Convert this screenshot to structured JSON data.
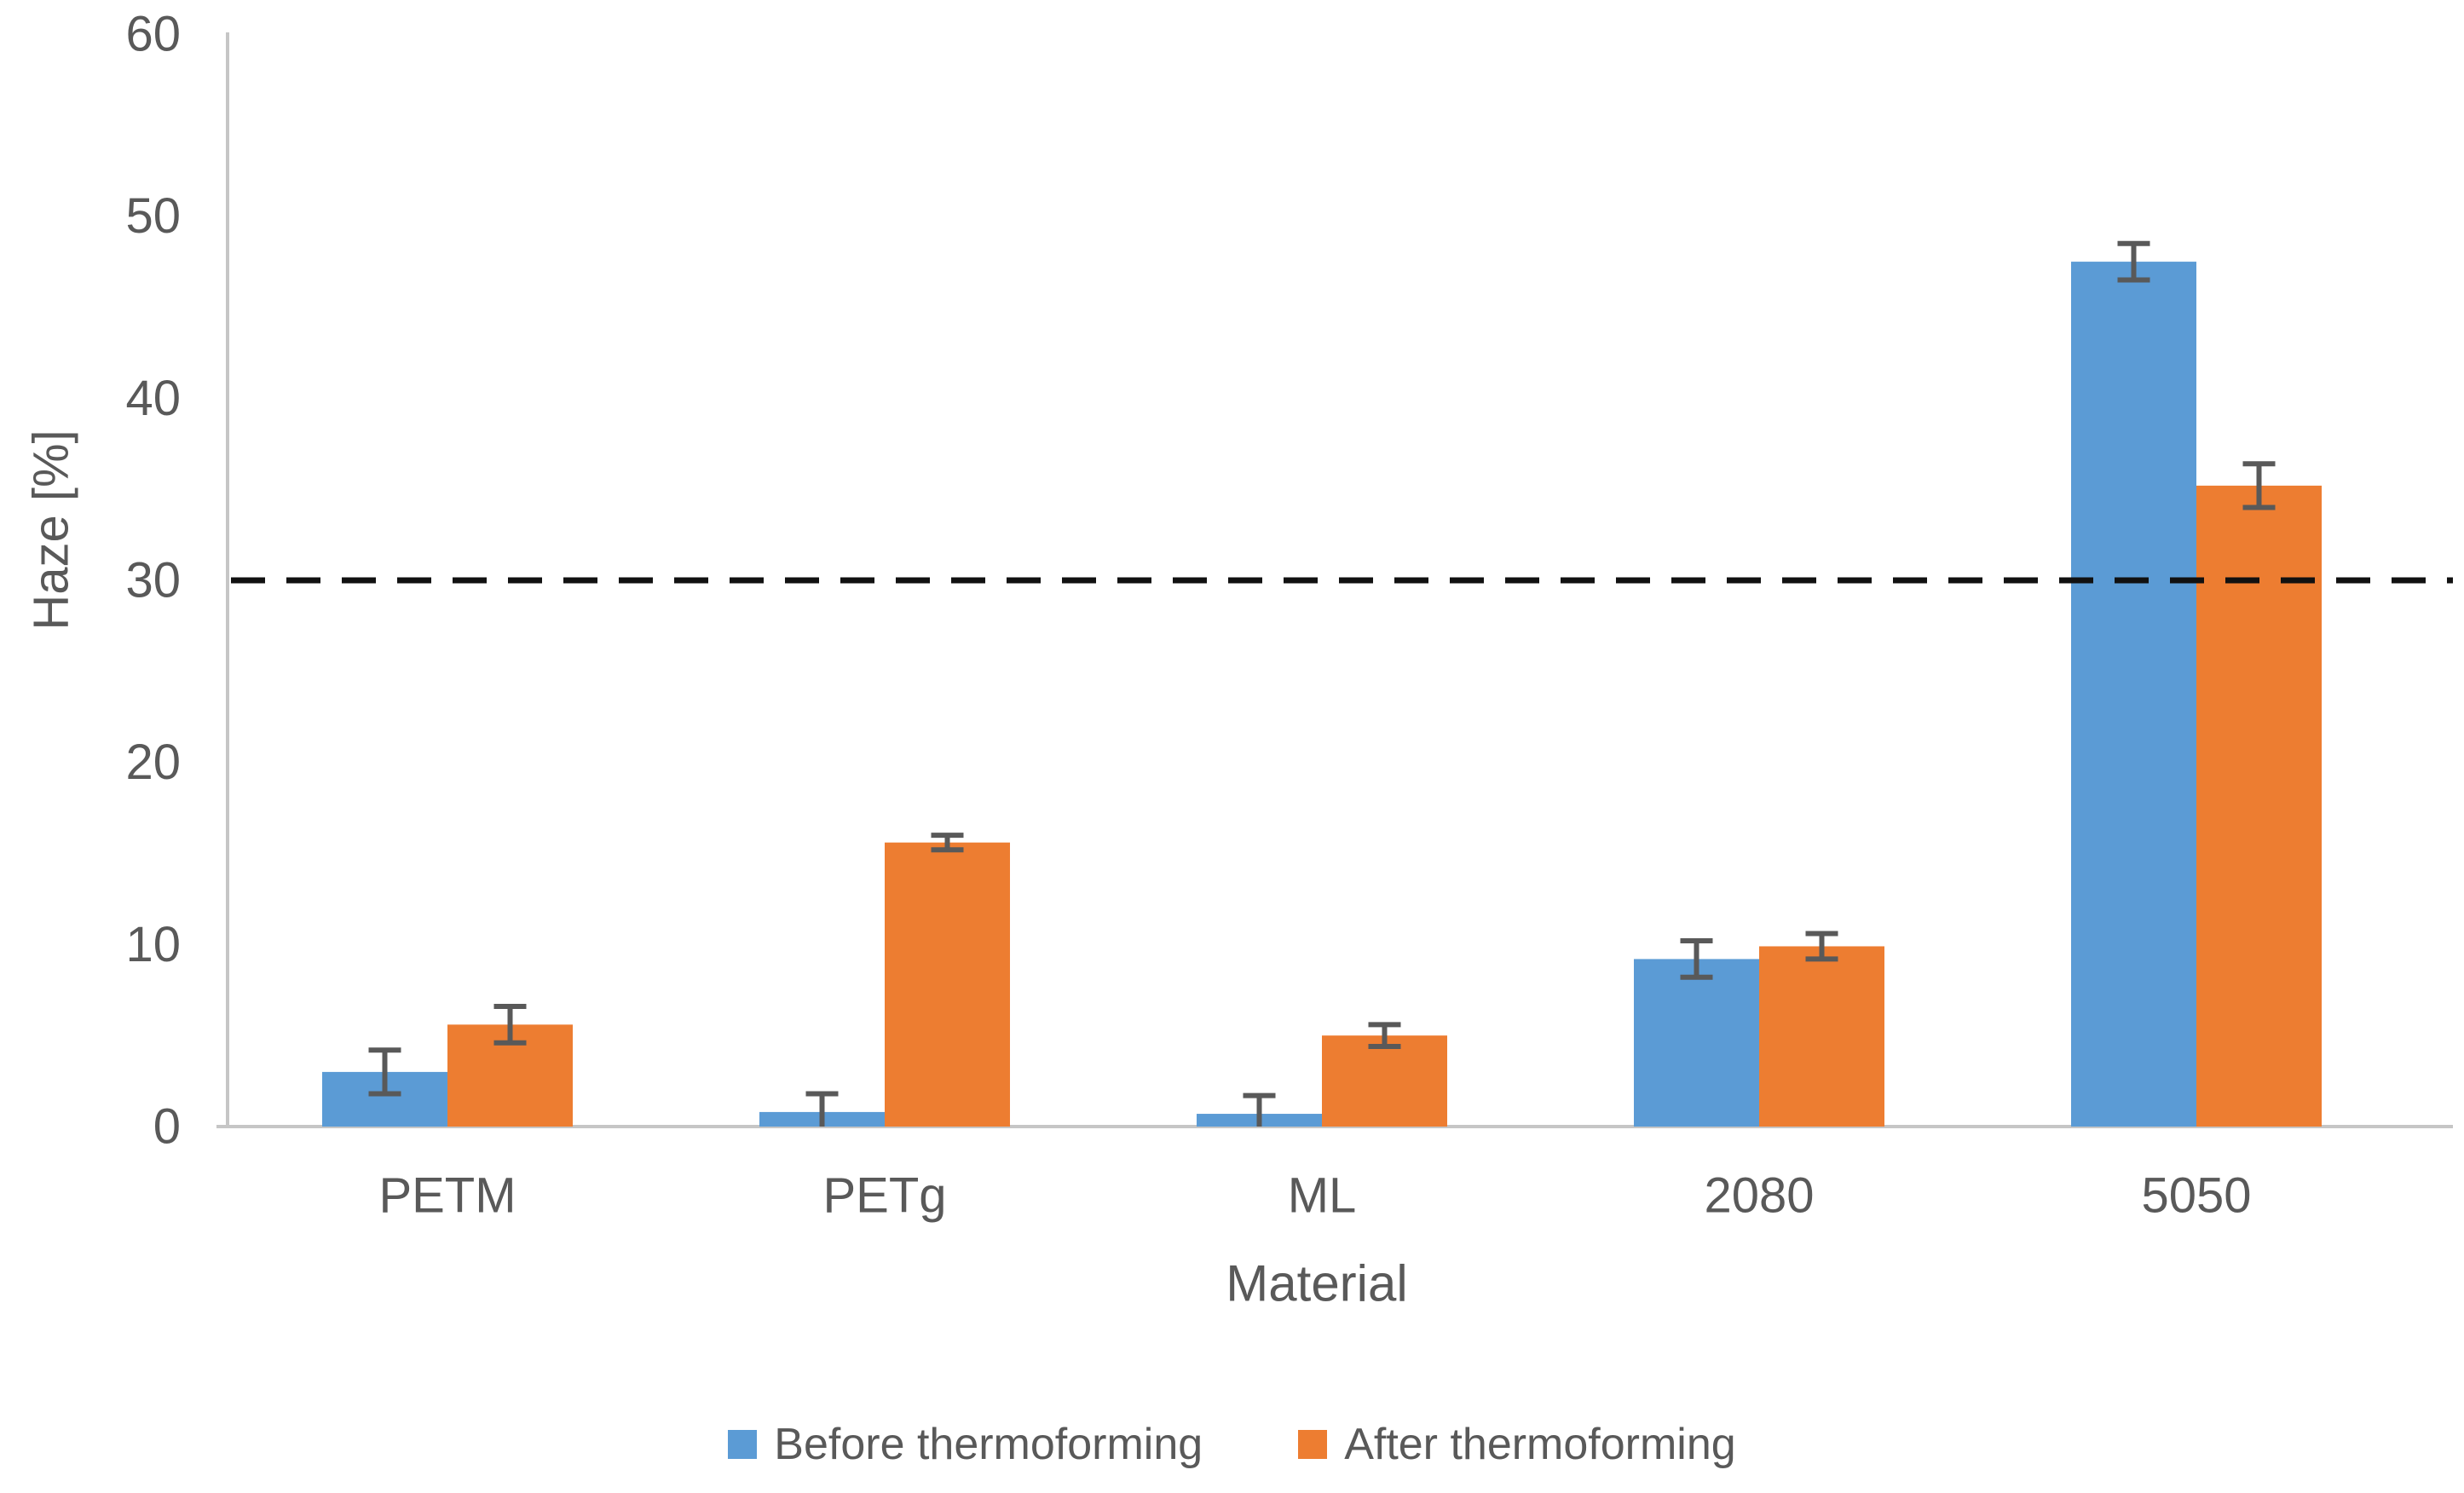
{
  "chart_data": {
    "type": "bar",
    "title": "",
    "xlabel": "Material",
    "ylabel": "Haze [%]",
    "categories": [
      "PETM",
      "PETg",
      "ML",
      "2080",
      "5050"
    ],
    "series": [
      {
        "name": "Before thermoforming",
        "color": "#5B9BD5",
        "values": [
          3.0,
          0.8,
          0.7,
          9.2,
          47.5
        ],
        "errors": [
          1.2,
          1.0,
          1.0,
          1.0,
          1.0
        ]
      },
      {
        "name": "After thermoforming",
        "color": "#ED7D31",
        "values": [
          5.6,
          15.6,
          5.0,
          9.9,
          35.2
        ],
        "errors": [
          1.0,
          0.4,
          0.6,
          0.7,
          1.2
        ]
      }
    ],
    "yticks": [
      0,
      10,
      20,
      30,
      40,
      50,
      60
    ],
    "ylim": [
      0,
      60
    ],
    "reference_line": {
      "value": 30,
      "style": "dashed",
      "color": "#111111"
    },
    "legend_position": "bottom",
    "grid": false,
    "error_bars": true
  },
  "colors": {
    "axis_line": "#c6c6c6",
    "text": "#595959",
    "error_bar": "#595959",
    "background": "#ffffff"
  }
}
